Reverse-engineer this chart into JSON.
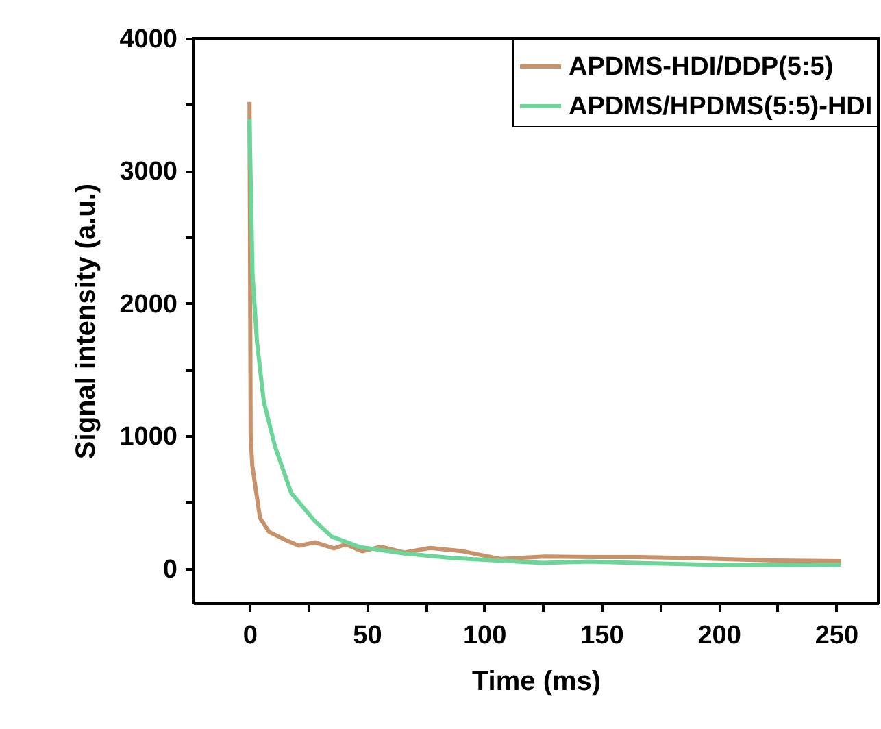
{
  "chart_data": {
    "type": "line",
    "xlabel": "Time (ms)",
    "ylabel": "Signal intensity (a.u.)",
    "xlim": [
      -24,
      268
    ],
    "ylim": [
      -260,
      4000
    ],
    "xticks": [
      0,
      {
        "value": 25,
        "label": null
      },
      50,
      {
        "value": 75,
        "label": null
      },
      100,
      {
        "value": 125,
        "label": null
      },
      150,
      {
        "value": 175,
        "label": null
      },
      200,
      {
        "value": 225,
        "label": null
      },
      250
    ],
    "yticks": [
      0,
      {
        "value": 500,
        "label": null
      },
      1000,
      {
        "value": 1500,
        "label": null
      },
      2000,
      {
        "value": 2500,
        "label": null
      },
      3000,
      {
        "value": 3500,
        "label": null
      },
      4000
    ],
    "legend": "top right",
    "grid": false,
    "marker": "none",
    "line_style": "solid",
    "series": [
      {
        "name": "APDMS-HDI/DDP(5:5)",
        "color": "#c9926a",
        "x": [
          0,
          0.5,
          1.2,
          2.9,
          4.5,
          8.4,
          14.3,
          21,
          28,
          36,
          41,
          48,
          56,
          66,
          77,
          91,
          107,
          126,
          146,
          166,
          185,
          205,
          224,
          252
        ],
        "values": [
          3520,
          1000,
          775,
          569,
          380,
          276,
          224,
          172,
          197,
          152,
          182,
          130,
          165,
          120,
          155,
          130,
          72,
          90,
          86,
          86,
          80,
          70,
          60,
          55
        ]
      },
      {
        "name": "APDMS/HPDMS(5:5)-HDI",
        "color": "#6cd69a",
        "x": [
          0,
          1.3,
          3.2,
          6.1,
          11,
          17.8,
          27.6,
          35,
          47,
          66,
          86,
          105,
          125,
          145,
          164,
          185,
          205,
          224,
          252
        ],
        "values": [
          3390,
          2220,
          1706,
          1260,
          913,
          569,
          362,
          241,
          162,
          114,
          80,
          60,
          43,
          53,
          43,
          33,
          27,
          27,
          30
        ]
      }
    ]
  }
}
